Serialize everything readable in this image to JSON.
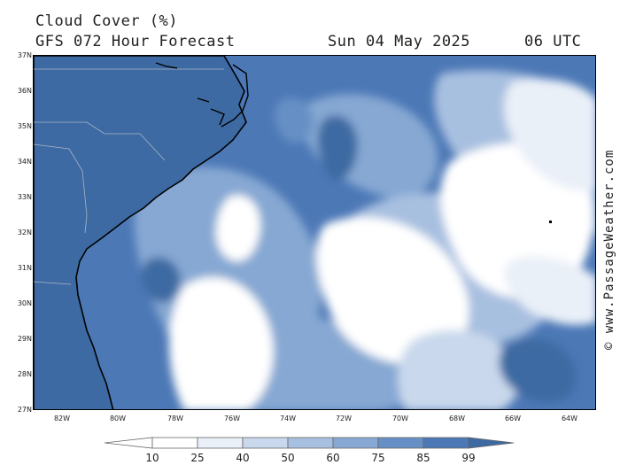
{
  "header": {
    "title": "Cloud Cover (%)",
    "subtitle": "GFS 072 Hour Forecast",
    "date": "Sun 04 May 2025",
    "time": "06 UTC"
  },
  "credit": "© www.PassageWeather.com",
  "map": {
    "lat_labels": [
      "37N",
      "36N",
      "35N",
      "34N",
      "33N",
      "32N",
      "31N",
      "30N",
      "29N",
      "28N",
      "27N"
    ],
    "lon_labels": [
      "82W",
      "80W",
      "78W",
      "76W",
      "74W",
      "72W",
      "70W",
      "68W",
      "66W",
      "64W"
    ],
    "land_color": "#3d6aa2",
    "coast_color": "#000000",
    "state_border_color": "#aab4c8"
  },
  "colorbar": {
    "labels": [
      "10",
      "25",
      "40",
      "50",
      "60",
      "75",
      "85",
      "99"
    ],
    "colors": [
      "#ffffff",
      "#eaf0f8",
      "#c9d8ec",
      "#a8c0e0",
      "#86a8d3",
      "#6690c5",
      "#4c78b6",
      "#3d6aa2"
    ]
  }
}
